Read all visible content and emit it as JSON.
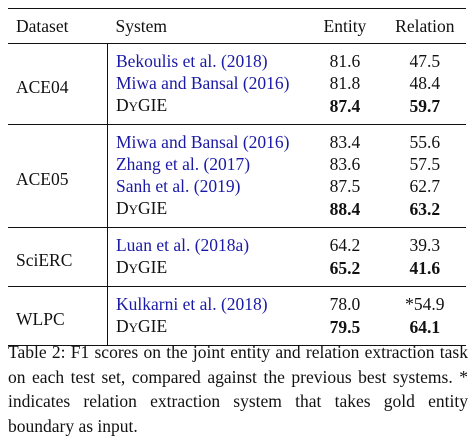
{
  "table": {
    "headers": {
      "dataset": "Dataset",
      "system": "System",
      "entity": "Entity",
      "relation": "Relation"
    },
    "groups": [
      {
        "dataset": "ACE04",
        "rows": [
          {
            "system": "Bekoulis et al. (2018)",
            "entity": "81.6",
            "relation": "47.5"
          },
          {
            "system": "Miwa and Bansal (2016)",
            "entity": "81.8",
            "relation": "48.4"
          },
          {
            "system": "DyGIE",
            "entity": "87.4",
            "relation": "59.7"
          }
        ]
      },
      {
        "dataset": "ACE05",
        "rows": [
          {
            "system": "Miwa and Bansal (2016)",
            "entity": "83.4",
            "relation": "55.6"
          },
          {
            "system": "Zhang et al. (2017)",
            "entity": "83.6",
            "relation": "57.5"
          },
          {
            "system": "Sanh et al. (2019)",
            "entity": "87.5",
            "relation": "62.7"
          },
          {
            "system": "DyGIE",
            "entity": "88.4",
            "relation": "63.2"
          }
        ]
      },
      {
        "dataset": "SciERC",
        "rows": [
          {
            "system": "Luan et al. (2018a)",
            "entity": "64.2",
            "relation": "39.3"
          },
          {
            "system": "DyGIE",
            "entity": "65.2",
            "relation": "41.6"
          }
        ]
      },
      {
        "dataset": "WLPC",
        "rows": [
          {
            "system": "Kulkarni et al. (2018)",
            "entity": "78.0",
            "relation": "*54.9"
          },
          {
            "system": "DyGIE",
            "entity": "79.5",
            "relation": "64.1"
          }
        ]
      }
    ]
  },
  "caption": "Table 2: F1 scores on the joint entity and relation extraction task on each test set, compared against the previous best systems. * indicates relation extraction system that takes gold entity boundary as input.",
  "colors": {
    "citation": "#1a1aa6",
    "text": "#111111"
  }
}
